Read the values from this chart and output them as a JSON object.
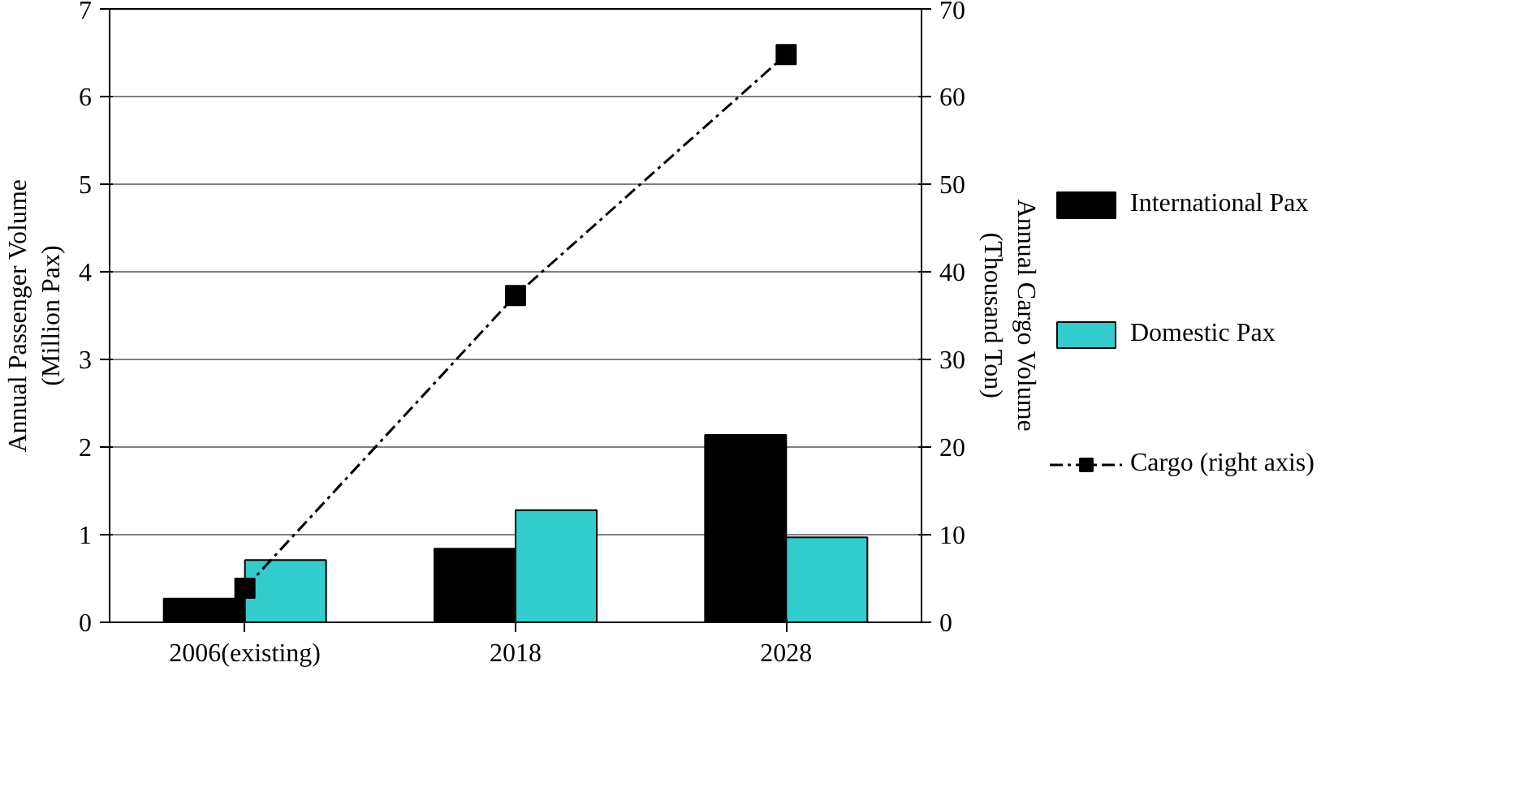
{
  "chart_data": {
    "type": "bar",
    "categories": [
      "2006(existing)",
      "2018",
      "2028"
    ],
    "ylabel": "Annual Passenger Volume\n(Million Pax)",
    "y2label": "Annual Cargo Volume\n(Thousand Ton)",
    "ylim": [
      0,
      7
    ],
    "yticks": [
      0,
      1,
      2,
      3,
      4,
      5,
      6,
      7
    ],
    "y2lim": [
      0,
      70
    ],
    "y2ticks": [
      0,
      10,
      20,
      30,
      40,
      50,
      60,
      70
    ],
    "grid": "y",
    "legend": "right",
    "series": [
      {
        "name": "International Pax",
        "color": "#000000",
        "values": [
          0.27,
          0.84,
          2.14
        ]
      },
      {
        "name": "Domestic Pax",
        "color": "#33cccc",
        "values": [
          0.71,
          1.28,
          0.97
        ]
      },
      {
        "name": "Cargo (right axis)",
        "type": "line",
        "axis": "y2",
        "color": "#000000",
        "marker": "square",
        "line_style": "dashed",
        "values": [
          3.9,
          37.3,
          64.8
        ]
      }
    ]
  }
}
